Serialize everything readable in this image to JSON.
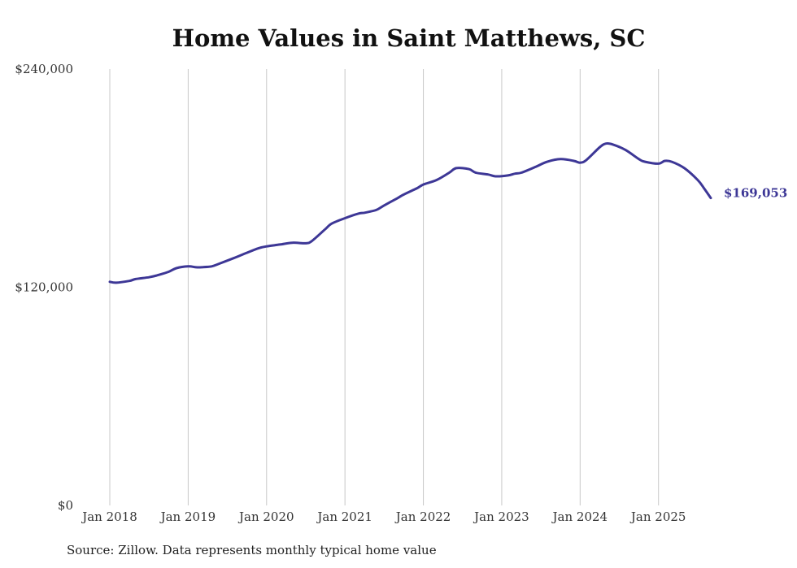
{
  "chart_data": {
    "type": "line",
    "title": "Home Values in Saint Matthews, SC",
    "xlabel": "",
    "ylabel": "",
    "y_ticks": [
      {
        "value": 0,
        "label": "$0"
      },
      {
        "value": 120000,
        "label": "$120,000"
      },
      {
        "value": 240000,
        "label": "$240,000"
      }
    ],
    "ylim": [
      0,
      240000
    ],
    "x_ticks": [
      {
        "value": 2018,
        "label": "Jan 2018"
      },
      {
        "value": 2019,
        "label": "Jan 2019"
      },
      {
        "value": 2020,
        "label": "Jan 2020"
      },
      {
        "value": 2021,
        "label": "Jan 2021"
      },
      {
        "value": 2022,
        "label": "Jan 2022"
      },
      {
        "value": 2023,
        "label": "Jan 2023"
      },
      {
        "value": 2024,
        "label": "Jan 2024"
      },
      {
        "value": 2025,
        "label": "Jan 2025"
      }
    ],
    "xlim": [
      2018,
      2025.667
    ],
    "series": [
      {
        "name": "Typical home value",
        "color": "#3d3796",
        "end_label": "$169,053",
        "x": [
          2018.0,
          2018.083,
          2018.25,
          2018.33,
          2018.5,
          2018.6,
          2018.75,
          2018.85,
          2019.0,
          2019.1,
          2019.17,
          2019.3,
          2019.4,
          2019.58,
          2019.75,
          2019.9,
          2020.0,
          2020.17,
          2020.33,
          2020.5,
          2020.58,
          2020.75,
          2020.83,
          2021.0,
          2021.17,
          2021.25,
          2021.4,
          2021.5,
          2021.67,
          2021.75,
          2021.92,
          2022.0,
          2022.17,
          2022.33,
          2022.42,
          2022.58,
          2022.67,
          2022.83,
          2022.92,
          2023.08,
          2023.17,
          2023.25,
          2023.42,
          2023.58,
          2023.75,
          2023.92,
          2024.0,
          2024.08,
          2024.25,
          2024.33,
          2024.42,
          2024.58,
          2024.75,
          2024.83,
          2025.0,
          2025.08,
          2025.17,
          2025.33,
          2025.5,
          2025.58,
          2025.667
        ],
        "values": [
          123000,
          122500,
          123500,
          124500,
          125500,
          126500,
          128500,
          130500,
          131500,
          131000,
          131000,
          131500,
          133000,
          136000,
          139000,
          141500,
          142500,
          143500,
          144500,
          144200,
          145500,
          152000,
          155000,
          158000,
          160500,
          161000,
          162500,
          165000,
          169000,
          171000,
          174500,
          176500,
          179000,
          183000,
          185500,
          185000,
          183000,
          182000,
          181000,
          181500,
          182500,
          183000,
          186000,
          189000,
          190500,
          189500,
          188500,
          190000,
          197000,
          199000,
          198500,
          195500,
          190500,
          189000,
          188000,
          189500,
          189000,
          185500,
          179000,
          174500,
          169053
        ]
      }
    ]
  },
  "source_note": "Source: Zillow. Data represents monthly typical home value"
}
